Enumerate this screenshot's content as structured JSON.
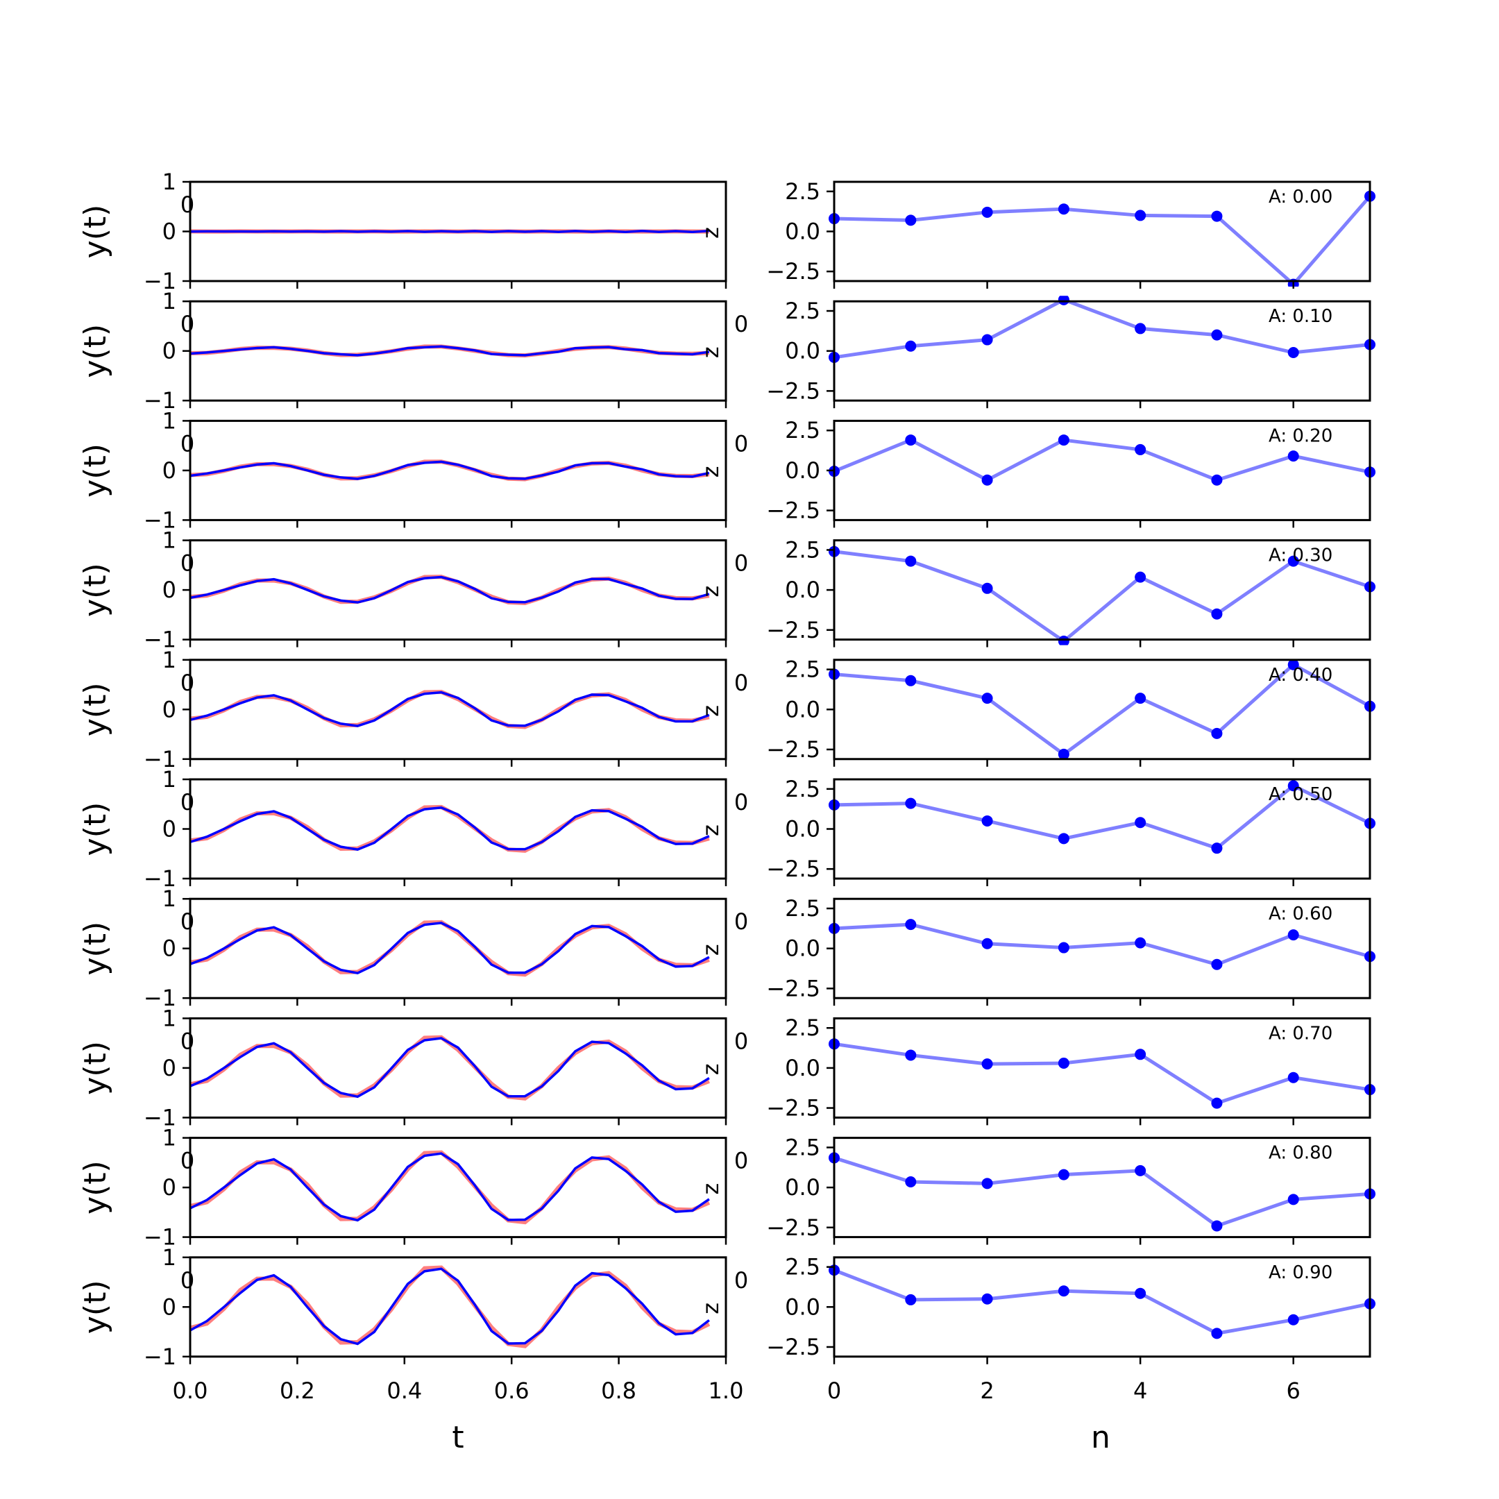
{
  "chart_data": [
    {
      "type": "line",
      "panel": "time-domain",
      "xlabel": "t",
      "ylabel": "y(t)",
      "xlim": [
        0.0,
        1.0
      ],
      "ylim": [
        -1,
        1
      ],
      "xticks": [
        "0.0",
        "0.2",
        "0.4",
        "0.6",
        "0.8",
        "1.0"
      ],
      "yticks": [
        "−1",
        "0",
        "1"
      ],
      "side_tick_label": "0",
      "edge_label": "z",
      "x": [
        0.0,
        0.03125,
        0.0625,
        0.09375,
        0.125,
        0.15625,
        0.1875,
        0.21875,
        0.25,
        0.28125,
        0.3125,
        0.34375,
        0.375,
        0.40625,
        0.4375,
        0.46875,
        0.5,
        0.53125,
        0.5625,
        0.59375,
        0.625,
        0.65625,
        0.6875,
        0.71875,
        0.75,
        0.78125,
        0.8125,
        0.84375,
        0.875,
        0.90625,
        0.9375,
        0.96875
      ],
      "series": [
        {
          "color": "#0000ff",
          "alpha": 1.0
        },
        {
          "color": "#ff0000",
          "alpha": 0.5
        }
      ],
      "amplitudes": [
        0.0,
        0.1,
        0.2,
        0.3,
        0.4,
        0.5,
        0.6,
        0.7,
        0.8,
        0.9
      ]
    },
    {
      "type": "line",
      "panel": "samples",
      "xlabel": "n",
      "xlim": [
        0,
        7
      ],
      "ylim": [
        -3.1,
        3.1
      ],
      "xticks": [
        "0",
        "2",
        "4",
        "6"
      ],
      "yticks": [
        "2.5",
        "0.0",
        "−2.5"
      ],
      "line_color": "#0000ff",
      "line_alpha": 0.5,
      "marker_color": "#0000ff",
      "x": [
        0,
        1,
        2,
        3,
        4,
        5,
        6,
        7
      ],
      "rows": [
        {
          "annotation": "A: 0.00",
          "values": [
            0.8,
            0.7,
            1.2,
            1.4,
            1.0,
            0.95,
            -3.3,
            2.2
          ]
        },
        {
          "annotation": "A: 0.10",
          "values": [
            -0.4,
            0.3,
            0.7,
            3.2,
            1.4,
            1.0,
            -0.1,
            0.4
          ]
        },
        {
          "annotation": "A: 0.20",
          "values": [
            -0.05,
            1.9,
            -0.6,
            1.9,
            1.3,
            -0.6,
            0.9,
            -0.1
          ]
        },
        {
          "annotation": "A: 0.30",
          "values": [
            2.4,
            1.8,
            0.1,
            -3.2,
            0.8,
            -1.5,
            1.8,
            0.2
          ]
        },
        {
          "annotation": "A: 0.40",
          "values": [
            2.2,
            1.8,
            0.7,
            -2.8,
            0.7,
            -1.5,
            2.8,
            0.2
          ]
        },
        {
          "annotation": "A: 0.50",
          "values": [
            1.5,
            1.6,
            0.5,
            -0.6,
            0.4,
            -1.2,
            2.7,
            0.35
          ]
        },
        {
          "annotation": "A: 0.60",
          "values": [
            1.25,
            1.5,
            0.3,
            0.05,
            0.35,
            -1.0,
            0.85,
            -0.5
          ]
        },
        {
          "annotation": "A: 0.70",
          "values": [
            1.5,
            0.8,
            0.25,
            0.3,
            0.85,
            -2.2,
            -0.6,
            -1.35
          ]
        },
        {
          "annotation": "A: 0.80",
          "values": [
            1.85,
            0.35,
            0.25,
            0.8,
            1.05,
            -2.4,
            -0.75,
            -0.4
          ]
        },
        {
          "annotation": "A: 0.90",
          "values": [
            2.3,
            0.45,
            0.5,
            1.0,
            0.85,
            -1.65,
            -0.8,
            0.2
          ]
        }
      ]
    }
  ]
}
